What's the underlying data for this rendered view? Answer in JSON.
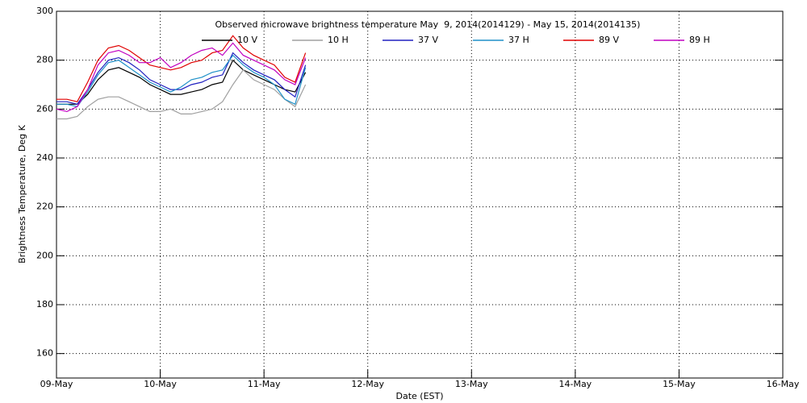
{
  "chart_data": {
    "type": "line",
    "title": "Observed microwave brightness temperature May  9, 2014(2014129) - May 15, 2014(2014135)",
    "x_label": "Date (EST)",
    "y_label": "Brightness Temperature, Deg K",
    "x": [
      0,
      0.1,
      0.2,
      0.3,
      0.4,
      0.5,
      0.6,
      0.7,
      0.8,
      0.9,
      1.0,
      1.1,
      1.2,
      1.3,
      1.4,
      1.5,
      1.6,
      1.7,
      1.8,
      1.9,
      2.0,
      2.1,
      2.2,
      2.3,
      2.4
    ],
    "xlim": [
      0,
      7
    ],
    "xticks": [
      {
        "value": 0,
        "label": "09-May"
      },
      {
        "value": 1,
        "label": "10-May"
      },
      {
        "value": 2,
        "label": "11-May"
      },
      {
        "value": 3,
        "label": "12-May"
      },
      {
        "value": 4,
        "label": "13-May"
      },
      {
        "value": 5,
        "label": "14-May"
      },
      {
        "value": 6,
        "label": "15-May"
      },
      {
        "value": 7,
        "label": "16-May"
      }
    ],
    "ylim": [
      150,
      300
    ],
    "yticks": [
      160,
      180,
      200,
      220,
      240,
      260,
      280,
      300
    ],
    "grid": true,
    "series": [
      {
        "name": "10 V",
        "color": "#000000",
        "values": [
          262,
          262,
          262,
          266,
          272,
          276,
          277,
          275,
          273,
          270,
          268,
          266,
          266,
          267,
          268,
          270,
          271,
          280,
          276,
          274,
          272,
          270,
          268,
          267,
          275
        ]
      },
      {
        "name": "10 H",
        "color": "#a0a0a0",
        "values": [
          256,
          256,
          257,
          261,
          264,
          265,
          265,
          263,
          261,
          259,
          259,
          260,
          258,
          258,
          259,
          260,
          263,
          270,
          276,
          272,
          270,
          268,
          264,
          261,
          270
        ]
      },
      {
        "name": "37 V",
        "color": "#2020c0",
        "values": [
          263,
          263,
          262,
          268,
          275,
          280,
          281,
          279,
          276,
          272,
          270,
          268,
          268,
          270,
          271,
          273,
          274,
          283,
          279,
          276,
          274,
          272,
          268,
          265,
          278
        ]
      },
      {
        "name": "37 H",
        "color": "#1e90c8",
        "values": [
          262,
          262,
          261,
          267,
          274,
          279,
          280,
          277,
          274,
          271,
          269,
          267,
          269,
          272,
          273,
          275,
          276,
          282,
          278,
          275,
          273,
          270,
          264,
          262,
          277
        ]
      },
      {
        "name": "89 V",
        "color": "#e00000",
        "values": [
          264,
          264,
          263,
          271,
          280,
          285,
          286,
          284,
          281,
          278,
          277,
          276,
          277,
          279,
          280,
          283,
          284,
          290,
          285,
          282,
          280,
          278,
          273,
          271,
          283
        ]
      },
      {
        "name": "89 H",
        "color": "#c000c0",
        "values": [
          260,
          259,
          261,
          268,
          278,
          283,
          284,
          282,
          279,
          279,
          281,
          277,
          279,
          282,
          284,
          285,
          282,
          287,
          282,
          280,
          278,
          276,
          272,
          270,
          281
        ]
      }
    ]
  }
}
